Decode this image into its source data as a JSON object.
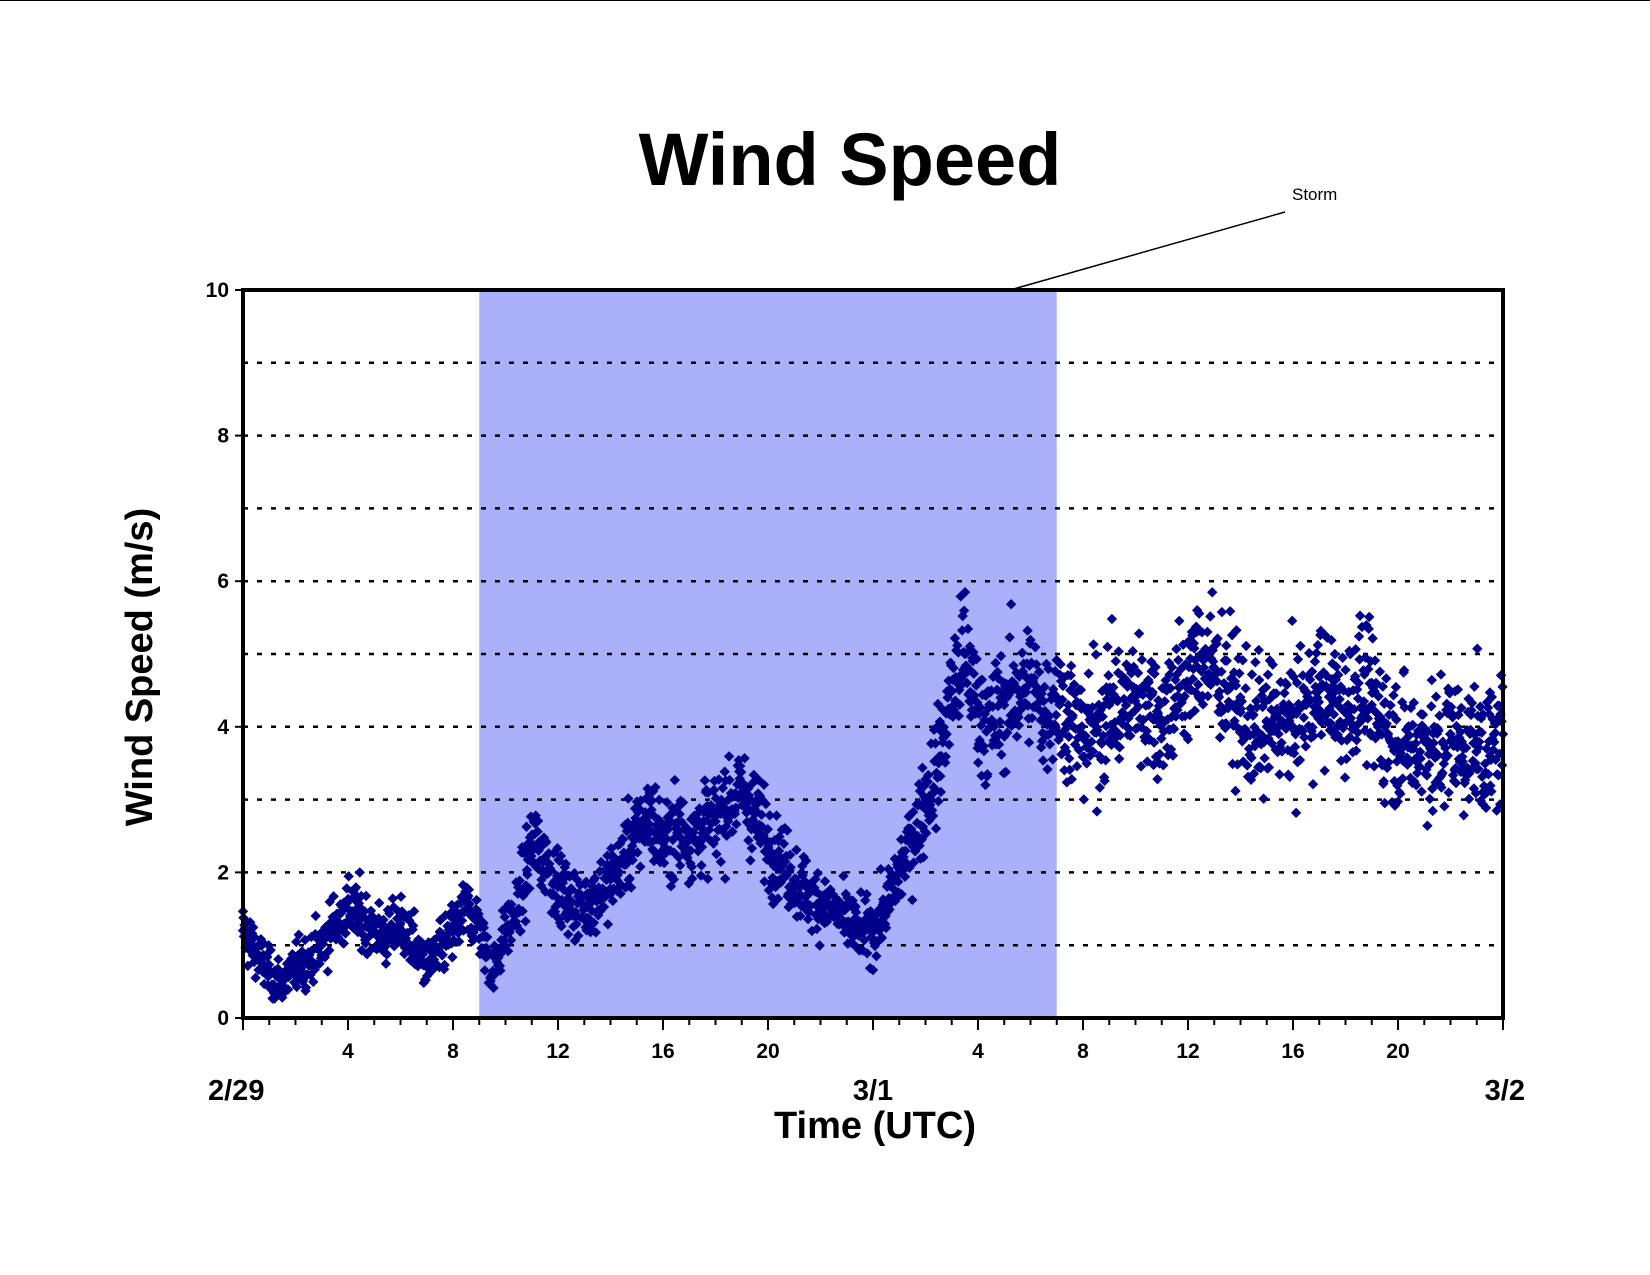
{
  "colors": {
    "points": "#00008b",
    "storm_band": "#aab0fa",
    "axis": "#000000"
  },
  "chart_data": {
    "type": "scatter",
    "title": "Wind Speed",
    "xlabel": "Time (UTC)",
    "ylabel": "Wind Speed (m/s)",
    "ylim": [
      0,
      10
    ],
    "yticks": [
      0,
      2,
      4,
      6,
      8,
      10
    ],
    "xlim": [
      "2/29 00:00",
      "3/2 00:00"
    ],
    "x_hour_ticks": [
      "4",
      "8",
      "12",
      "16",
      "20",
      "4",
      "8",
      "12",
      "16",
      "20"
    ],
    "x_day_ticks": [
      "2/29",
      "3/1",
      "3/2"
    ],
    "grid": "horizontal dotted every 1 m/s",
    "legend": "none",
    "annotation": {
      "text": "Storm",
      "x_start": "2/29 09:00",
      "x_end": "3/1 07:00"
    },
    "series": [
      {
        "marker": "diamond",
        "x_unit": "hours since 2/29 00:00",
        "x": [
          0.0,
          0.5,
          1.0,
          1.5,
          2.0,
          2.5,
          3.0,
          3.5,
          4.0,
          4.5,
          5.0,
          5.5,
          6.0,
          6.5,
          7.0,
          7.5,
          8.0,
          8.5,
          9.0,
          9.5,
          10.0,
          10.5,
          11.0,
          11.5,
          12.0,
          12.5,
          13.0,
          13.5,
          14.0,
          14.5,
          15.0,
          15.5,
          16.0,
          16.5,
          17.0,
          17.5,
          18.0,
          18.5,
          19.0,
          19.5,
          20.0,
          20.5,
          21.0,
          21.5,
          22.0,
          22.5,
          23.0,
          23.5,
          24.0,
          24.5,
          25.0,
          25.5,
          26.0,
          26.5,
          27.0,
          27.5,
          28.0,
          28.5,
          29.0,
          29.5,
          30.0,
          30.5,
          31.0,
          31.5,
          32.0,
          32.5,
          33.0,
          33.5,
          34.0,
          34.5,
          35.0,
          35.5,
          36.0,
          36.5,
          37.0,
          37.5,
          38.0,
          38.5,
          39.0,
          39.5,
          40.0,
          40.5,
          41.0,
          41.5,
          42.0,
          42.5,
          43.0,
          43.5,
          44.0,
          44.5,
          45.0,
          45.5,
          46.0,
          46.5,
          47.0,
          47.5,
          48.0
        ],
        "y": [
          1.2,
          0.9,
          0.6,
          0.5,
          0.7,
          0.8,
          1.0,
          1.3,
          1.5,
          1.4,
          1.2,
          1.1,
          1.3,
          1.0,
          0.7,
          0.9,
          1.2,
          1.5,
          1.3,
          0.6,
          1.2,
          1.5,
          2.4,
          2.2,
          1.8,
          1.6,
          1.5,
          1.7,
          1.9,
          2.2,
          2.5,
          2.8,
          2.4,
          2.6,
          2.5,
          2.6,
          2.7,
          3.0,
          3.1,
          2.8,
          2.4,
          2.2,
          1.9,
          1.7,
          1.6,
          1.5,
          1.3,
          1.2,
          1.2,
          1.5,
          2.0,
          2.5,
          3.0,
          3.5,
          4.5,
          5.0,
          4.2,
          4.0,
          4.3,
          4.5,
          4.6,
          4.2,
          4.4,
          4.1,
          3.9,
          4.0,
          4.3,
          4.2,
          4.5,
          4.3,
          4.1,
          4.4,
          4.6,
          5.0,
          4.8,
          4.5,
          4.2,
          3.9,
          4.0,
          4.1,
          4.0,
          4.3,
          4.5,
          4.4,
          4.2,
          4.6,
          4.3,
          4.0,
          3.8,
          3.7,
          3.8,
          3.6,
          3.9,
          3.7,
          3.8,
          3.6,
          3.9
        ]
      }
    ]
  }
}
